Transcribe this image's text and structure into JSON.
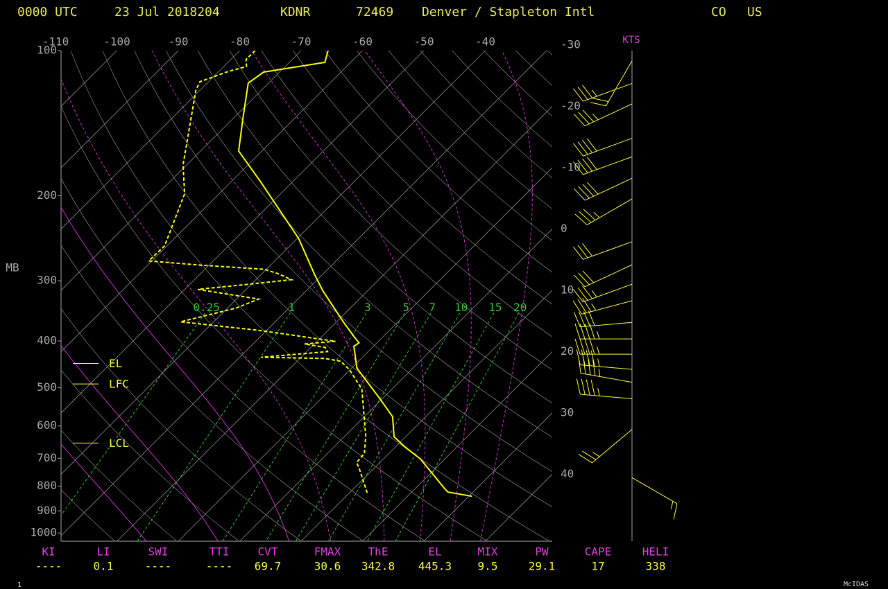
{
  "header": {
    "time": "0000 UTC",
    "date": "23 Jul 2018204",
    "station": "KDNR",
    "station_id": "72469",
    "name": "Denver / Stapleton Intl",
    "state": "CO",
    "country": "US"
  },
  "chart_data": {
    "type": "skewt",
    "y_label": "MB",
    "ylim": [
      100,
      1040
    ],
    "yticks": [
      100,
      200,
      300,
      400,
      500,
      600,
      700,
      800,
      900,
      1000
    ],
    "xticks": [
      -110,
      -100,
      -90,
      -80,
      -70,
      -60,
      -50,
      -40
    ],
    "isotherm_labels": [
      -30,
      -20,
      -10,
      0,
      10,
      20,
      30,
      40
    ],
    "mixing_ratios": [
      0.25,
      1,
      3,
      5,
      7,
      10,
      15,
      20
    ],
    "series": [
      {
        "color": "#ffff00",
        "dashed": false,
        "pressure": [
          100,
          105.8,
          110.8,
          116.8,
          137.8,
          161.5,
          186.7,
          245.5,
          291.7,
          314.7,
          365,
          392.6,
          403.6,
          410,
          455.6,
          521.5,
          574,
          631.6,
          663.7,
          702,
          809,
          822.7,
          839.5
        ],
        "temperature": [
          -65.6,
          -64.2,
          -72.6,
          -73.3,
          -68.5,
          -63.8,
          -55.3,
          -39.7,
          -31.2,
          -27.3,
          -18.9,
          -14.6,
          -12.9,
          -13.2,
          -9.1,
          -1,
          4.6,
          8.1,
          11.6,
          16.0,
          24.8,
          25.9,
          30.5
        ]
      },
      {
        "color": "#ffff00",
        "dashed": true,
        "pressure": [
          100,
          104.4,
          107.9,
          110.4,
          116,
          120.7,
          172.5,
          198.2,
          253.9,
          273,
          278.5,
          284,
          289.7,
          298.5,
          305.5,
          312.6,
          327.4,
          341.8,
          365,
          381,
          400.6,
          405.7,
          412.3,
          420.7,
          432.3,
          434.7,
          440.5,
          458.5,
          503.3,
          629.9,
          684,
          714,
          743,
          826
        ],
        "temperature": [
          -77.5,
          -77.5,
          -76.3,
          -78.4,
          -81.4,
          -80.7,
          -70.6,
          -65.6,
          -60.4,
          -60.5,
          -51.2,
          -40.4,
          -37.5,
          -34.2,
          -40.8,
          -47.9,
          -36.4,
          -38.6,
          -45.4,
          -30.6,
          -17,
          -21.6,
          -17.7,
          -16.6,
          -26.5,
          -15.9,
          -12.9,
          -10.1,
          -4.9,
          3.4,
          6,
          6.2,
          8.1,
          12.9
        ]
      }
    ],
    "levels": [
      {
        "label": "EL",
        "pressure": 445.3
      },
      {
        "label": "LFC",
        "pressure": 491
      },
      {
        "label": "LCL",
        "pressure": 651
      }
    ],
    "wind_label": "KTS",
    "winds": {
      "pressure": [
        105,
        117,
        129,
        152,
        166,
        184,
        203,
        249,
        278,
        305,
        330,
        366,
        396,
        426,
        458,
        487,
        527,
        610,
        768
      ],
      "direction": [
        210,
        250,
        245,
        250,
        250,
        245,
        240,
        250,
        245,
        250,
        255,
        265,
        270,
        270,
        275,
        280,
        275,
        230,
        120
      ],
      "speed": [
        20,
        35,
        35,
        40,
        40,
        40,
        35,
        30,
        30,
        35,
        35,
        40,
        45,
        45,
        45,
        45,
        45,
        25,
        15
      ]
    },
    "indices": [
      {
        "label": "KI",
        "value": "----"
      },
      {
        "label": "LI",
        "value": 0.1
      },
      {
        "label": "SWI",
        "value": "----"
      },
      {
        "label": "TTI",
        "value": "----"
      },
      {
        "label": "CVT",
        "value": 69.7
      },
      {
        "label": "FMAX",
        "value": 30.6
      },
      {
        "label": "ThE",
        "value": 342.8
      },
      {
        "label": "EL",
        "value": 445.3
      },
      {
        "label": "MIX",
        "value": 9.5
      },
      {
        "label": "PW",
        "value": 29.1
      },
      {
        "label": "CAPE",
        "value": 17
      },
      {
        "label": "HELI",
        "value": 338
      }
    ]
  },
  "footer": {
    "left": "1",
    "right": "McIDAS"
  }
}
